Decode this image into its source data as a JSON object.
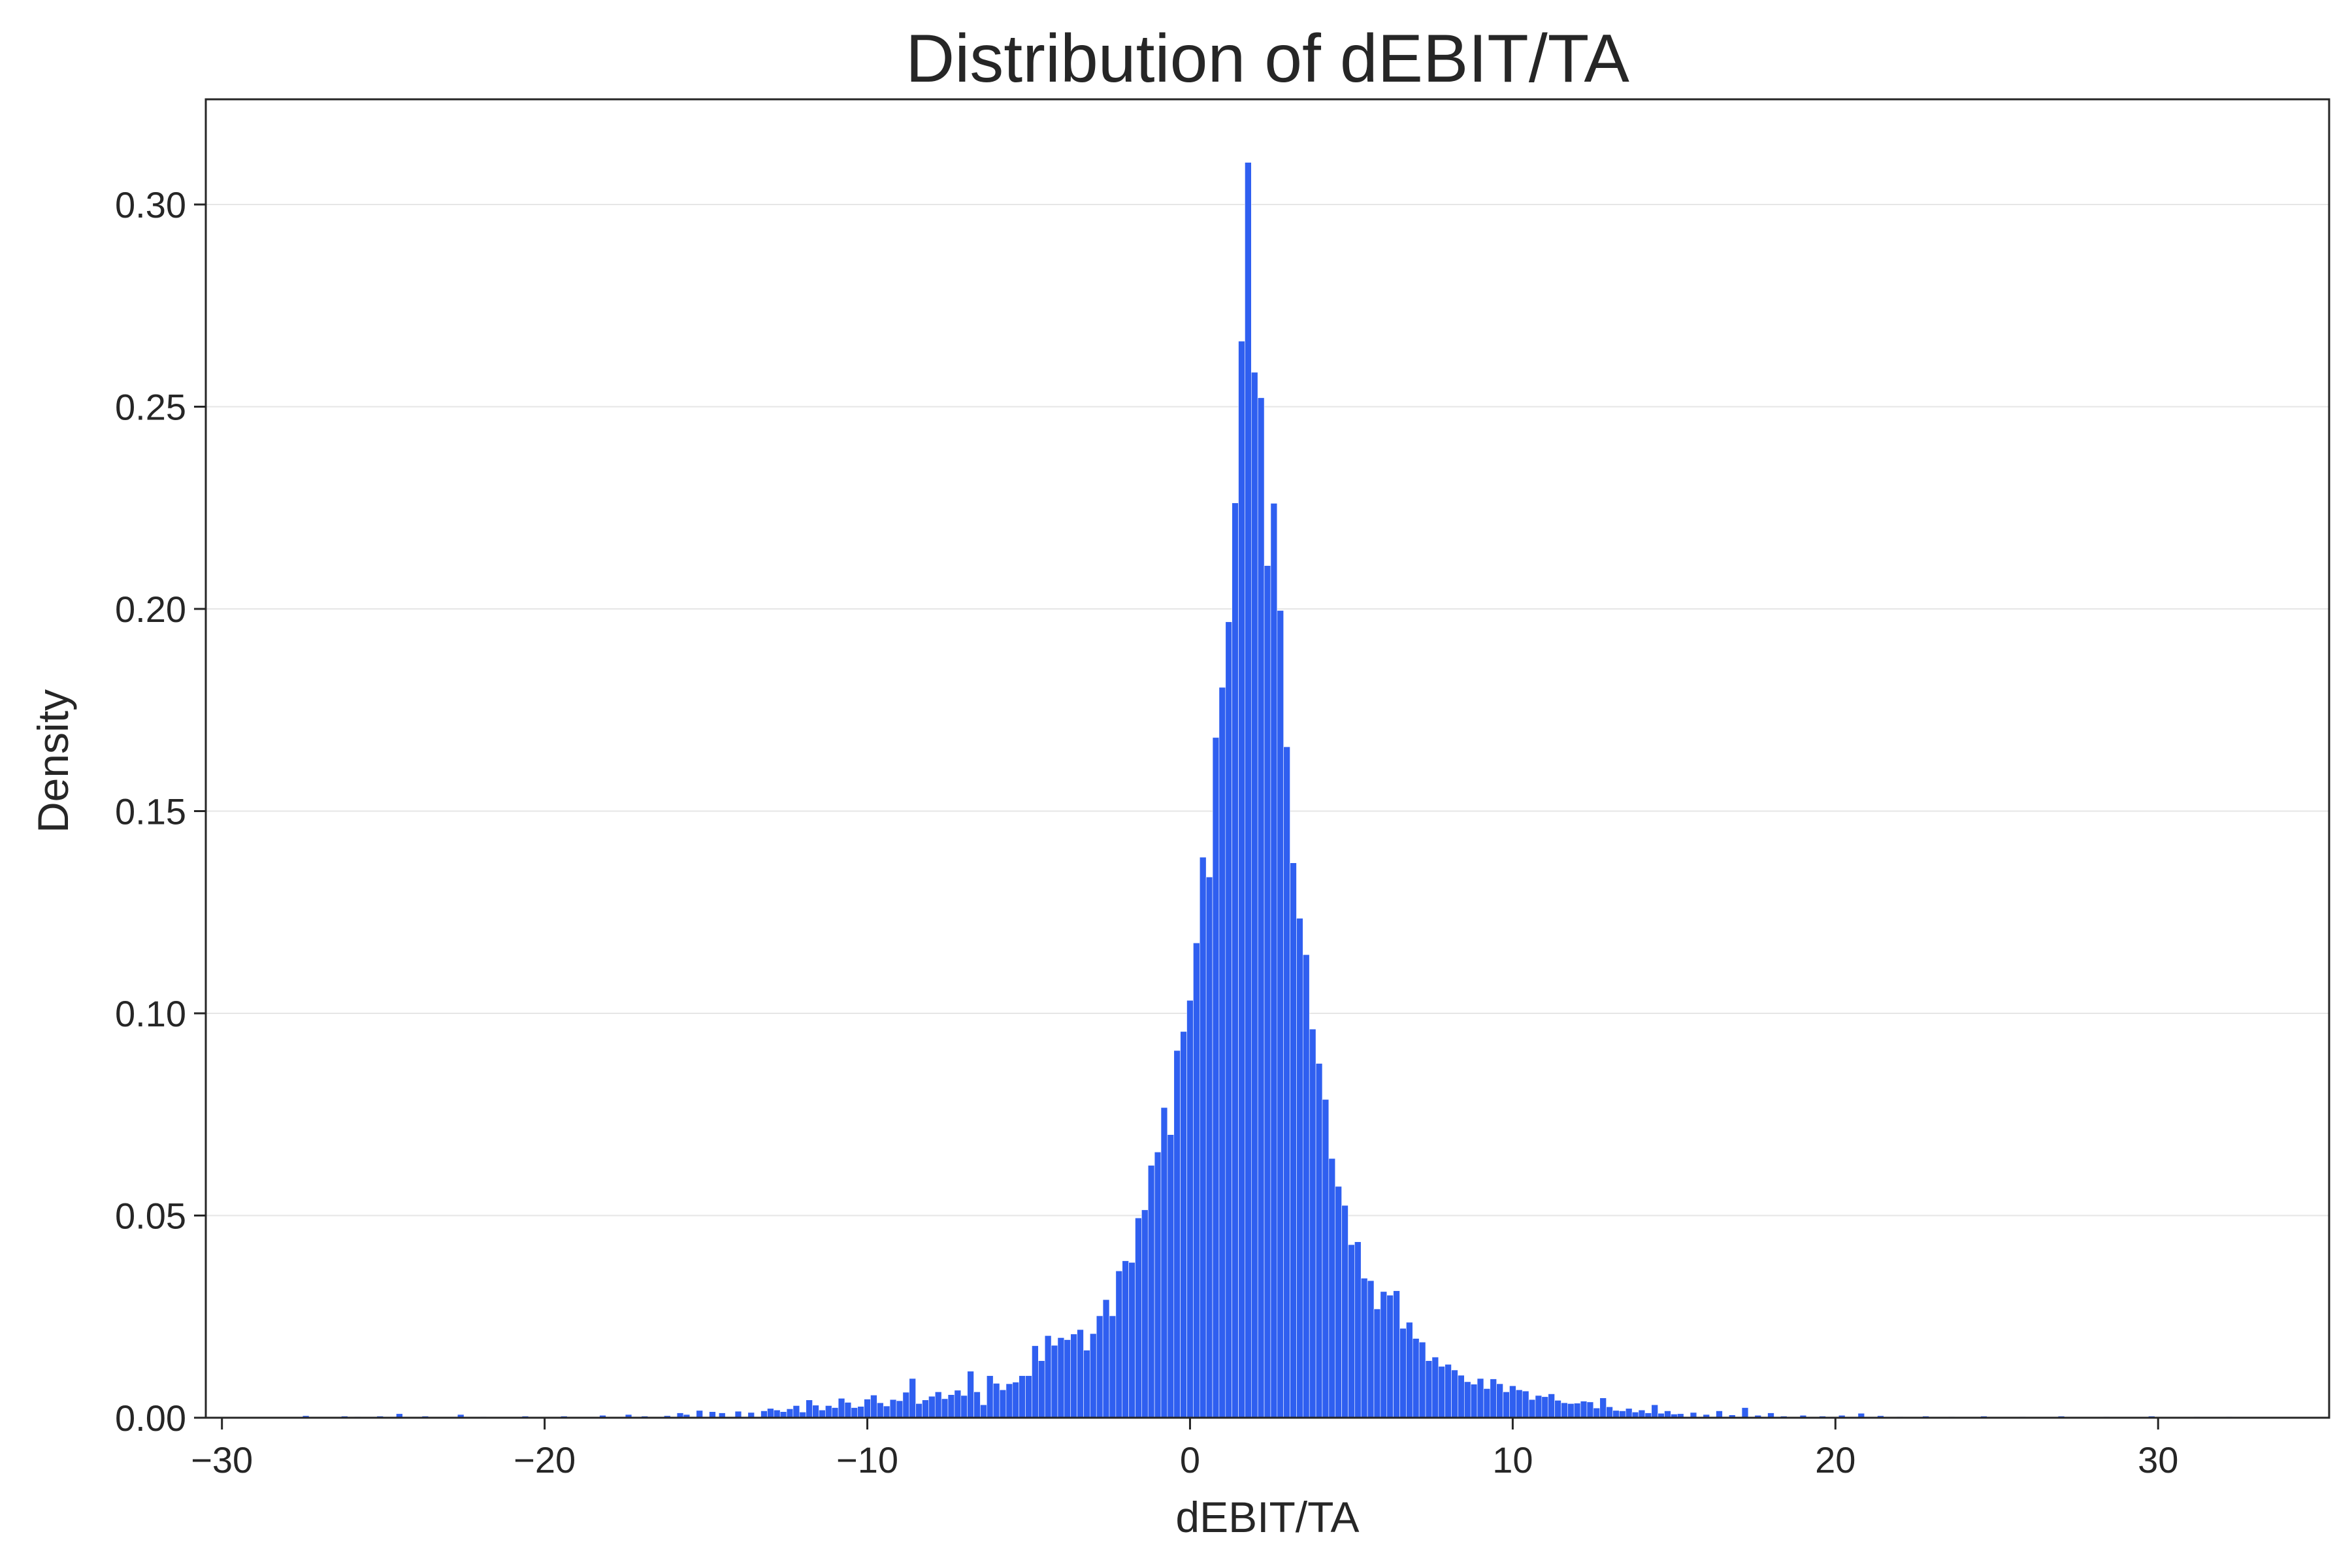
{
  "chart_data": {
    "type": "bar",
    "title": "Distribution of dEBIT/TA",
    "xlabel": "dEBIT/TA",
    "ylabel": "Density",
    "xlim": [
      -30.5,
      35.3
    ],
    "ylim": [
      0,
      0.326
    ],
    "xticks": [
      -30,
      -20,
      -10,
      0,
      10,
      20,
      30
    ],
    "xtick_labels": [
      "−30",
      "−20",
      "−10",
      "0",
      "10",
      "20",
      "30"
    ],
    "yticks": [
      0.0,
      0.05,
      0.1,
      0.15,
      0.2,
      0.25,
      0.3
    ],
    "ytick_labels": [
      "0.00",
      "0.05",
      "0.10",
      "0.15",
      "0.20",
      "0.25",
      "0.30"
    ],
    "grid": "horizontal",
    "legend": "none",
    "bar_color": "#2f5ff0",
    "bin_width": 0.2,
    "series": [
      {
        "bins": [
          [
            -27.4,
            0.0005
          ],
          [
            -26.2,
            0.0004
          ],
          [
            -25.8,
            0.0003
          ],
          [
            -25.1,
            0.0004
          ],
          [
            -24.5,
            0.001
          ],
          [
            -23.7,
            0.0004
          ],
          [
            -22.6,
            0.0008
          ],
          [
            -21.9,
            0.0003
          ],
          [
            -20.6,
            0.0004
          ],
          [
            -19.4,
            0.0004
          ],
          [
            -18.2,
            0.0006
          ],
          [
            -17.4,
            0.0008
          ],
          [
            -16.9,
            0.0004
          ],
          [
            -16.2,
            0.0005
          ],
          [
            -15.8,
            0.0012
          ],
          [
            -15.6,
            0.0008
          ],
          [
            -15.2,
            0.0018
          ],
          [
            -14.8,
            0.0015
          ],
          [
            -14.5,
            0.0012
          ],
          [
            -14.0,
            0.0016
          ],
          [
            -13.6,
            0.0013
          ],
          [
            -13.2,
            0.0017
          ],
          [
            -13.0,
            0.0023
          ],
          [
            -12.8,
            0.0019
          ],
          [
            -12.6,
            0.0015
          ],
          [
            -12.4,
            0.0022
          ],
          [
            -12.2,
            0.003
          ],
          [
            -12.0,
            0.0014
          ],
          [
            -11.8,
            0.0044
          ],
          [
            -11.6,
            0.0031
          ],
          [
            -11.4,
            0.0019
          ],
          [
            -11.2,
            0.003
          ],
          [
            -11.0,
            0.0025
          ],
          [
            -10.8,
            0.0048
          ],
          [
            -10.6,
            0.0038
          ],
          [
            -10.4,
            0.0025
          ],
          [
            -10.2,
            0.0028
          ],
          [
            -10.0,
            0.0046
          ],
          [
            -9.8,
            0.0056
          ],
          [
            -9.6,
            0.0037
          ],
          [
            -9.4,
            0.0029
          ],
          [
            -9.2,
            0.0045
          ],
          [
            -9.0,
            0.0042
          ],
          [
            -8.8,
            0.0063
          ],
          [
            -8.6,
            0.0097
          ],
          [
            -8.4,
            0.0035
          ],
          [
            -8.2,
            0.0044
          ],
          [
            -8.0,
            0.0053
          ],
          [
            -7.8,
            0.0064
          ],
          [
            -7.6,
            0.0047
          ],
          [
            -7.4,
            0.0057
          ],
          [
            -7.2,
            0.0068
          ],
          [
            -7.0,
            0.0055
          ],
          [
            -6.8,
            0.0115
          ],
          [
            -6.6,
            0.0064
          ],
          [
            -6.4,
            0.0032
          ],
          [
            -6.2,
            0.0104
          ],
          [
            -6.0,
            0.0085
          ],
          [
            -5.8,
            0.0069
          ],
          [
            -5.6,
            0.0084
          ],
          [
            -5.4,
            0.0088
          ],
          [
            -5.2,
            0.0104
          ],
          [
            -5.0,
            0.0104
          ],
          [
            -4.8,
            0.0178
          ],
          [
            -4.6,
            0.0141
          ],
          [
            -4.4,
            0.0203
          ],
          [
            -4.2,
            0.0179
          ],
          [
            -4.0,
            0.0198
          ],
          [
            -3.8,
            0.0193
          ],
          [
            -3.6,
            0.0207
          ],
          [
            -3.4,
            0.0218
          ],
          [
            -3.2,
            0.0167
          ],
          [
            -3.0,
            0.0208
          ],
          [
            -2.8,
            0.0252
          ],
          [
            -2.6,
            0.0292
          ],
          [
            -2.4,
            0.0252
          ],
          [
            -2.2,
            0.0363
          ],
          [
            -2.0,
            0.0388
          ],
          [
            -1.8,
            0.0384
          ],
          [
            -1.6,
            0.0494
          ],
          [
            -1.4,
            0.0514
          ],
          [
            -1.2,
            0.0624
          ],
          [
            -1.0,
            0.0657
          ],
          [
            -0.8,
            0.0767
          ],
          [
            -0.6,
            0.07
          ],
          [
            -0.4,
            0.0908
          ],
          [
            -0.2,
            0.0955
          ],
          [
            0.0,
            0.1032
          ],
          [
            0.2,
            0.1174
          ],
          [
            0.4,
            0.1386
          ],
          [
            0.6,
            0.1337
          ],
          [
            0.8,
            0.1682
          ],
          [
            1.0,
            0.1806
          ],
          [
            1.2,
            0.1968
          ],
          [
            1.4,
            0.2262
          ],
          [
            1.6,
            0.2662
          ],
          [
            1.8,
            0.3104
          ],
          [
            2.0,
            0.2585
          ],
          [
            2.2,
            0.2522
          ],
          [
            2.4,
            0.2107
          ],
          [
            2.6,
            0.2261
          ],
          [
            2.8,
            0.1996
          ],
          [
            3.0,
            0.1659
          ],
          [
            3.2,
            0.1372
          ],
          [
            3.4,
            0.1235
          ],
          [
            3.6,
            0.1145
          ],
          [
            3.8,
            0.0961
          ],
          [
            4.0,
            0.0876
          ],
          [
            4.2,
            0.0787
          ],
          [
            4.4,
            0.0641
          ],
          [
            4.6,
            0.0572
          ],
          [
            4.8,
            0.0525
          ],
          [
            5.0,
            0.0428
          ],
          [
            5.2,
            0.0435
          ],
          [
            5.4,
            0.0345
          ],
          [
            5.6,
            0.0339
          ],
          [
            5.8,
            0.0269
          ],
          [
            6.0,
            0.0312
          ],
          [
            6.2,
            0.0303
          ],
          [
            6.4,
            0.0314
          ],
          [
            6.6,
            0.0221
          ],
          [
            6.8,
            0.0236
          ],
          [
            7.0,
            0.0196
          ],
          [
            7.2,
            0.0187
          ],
          [
            7.4,
            0.0141
          ],
          [
            7.6,
            0.015
          ],
          [
            7.8,
            0.0127
          ],
          [
            8.0,
            0.0132
          ],
          [
            8.2,
            0.0118
          ],
          [
            8.4,
            0.0105
          ],
          [
            8.6,
            0.0089
          ],
          [
            8.8,
            0.0083
          ],
          [
            9.0,
            0.0097
          ],
          [
            9.2,
            0.0072
          ],
          [
            9.4,
            0.0096
          ],
          [
            9.6,
            0.0084
          ],
          [
            9.8,
            0.0064
          ],
          [
            10.0,
            0.0079
          ],
          [
            10.2,
            0.0069
          ],
          [
            10.4,
            0.0066
          ],
          [
            10.6,
            0.0045
          ],
          [
            10.8,
            0.0055
          ],
          [
            11.0,
            0.0052
          ],
          [
            11.2,
            0.0059
          ],
          [
            11.4,
            0.0043
          ],
          [
            11.6,
            0.0037
          ],
          [
            11.8,
            0.0035
          ],
          [
            12.0,
            0.0036
          ],
          [
            12.2,
            0.0041
          ],
          [
            12.4,
            0.0039
          ],
          [
            12.6,
            0.0024
          ],
          [
            12.8,
            0.0049
          ],
          [
            13.0,
            0.0027
          ],
          [
            13.2,
            0.0018
          ],
          [
            13.4,
            0.0017
          ],
          [
            13.6,
            0.0023
          ],
          [
            13.8,
            0.0014
          ],
          [
            14.0,
            0.0019
          ],
          [
            14.2,
            0.0012
          ],
          [
            14.4,
            0.0032
          ],
          [
            14.6,
            0.0011
          ],
          [
            14.8,
            0.0017
          ],
          [
            15.0,
            0.0009
          ],
          [
            15.2,
            0.001
          ],
          [
            15.6,
            0.0013
          ],
          [
            16.0,
            0.0008
          ],
          [
            16.4,
            0.0017
          ],
          [
            16.8,
            0.0007
          ],
          [
            17.2,
            0.0025
          ],
          [
            17.6,
            0.0006
          ],
          [
            18.0,
            0.0012
          ],
          [
            18.4,
            0.0004
          ],
          [
            19.0,
            0.0006
          ],
          [
            19.6,
            0.0004
          ],
          [
            20.2,
            0.0006
          ],
          [
            20.8,
            0.0011
          ],
          [
            21.4,
            0.0005
          ],
          [
            22.0,
            0.0003
          ],
          [
            22.8,
            0.0004
          ],
          [
            23.6,
            0.0003
          ],
          [
            24.6,
            0.0004
          ],
          [
            25.8,
            0.0003
          ],
          [
            27.0,
            0.0004
          ],
          [
            28.4,
            0.0003
          ],
          [
            29.8,
            0.0004
          ],
          [
            31.2,
            0.0003
          ],
          [
            32.2,
            0.0003
          ]
        ]
      }
    ]
  }
}
